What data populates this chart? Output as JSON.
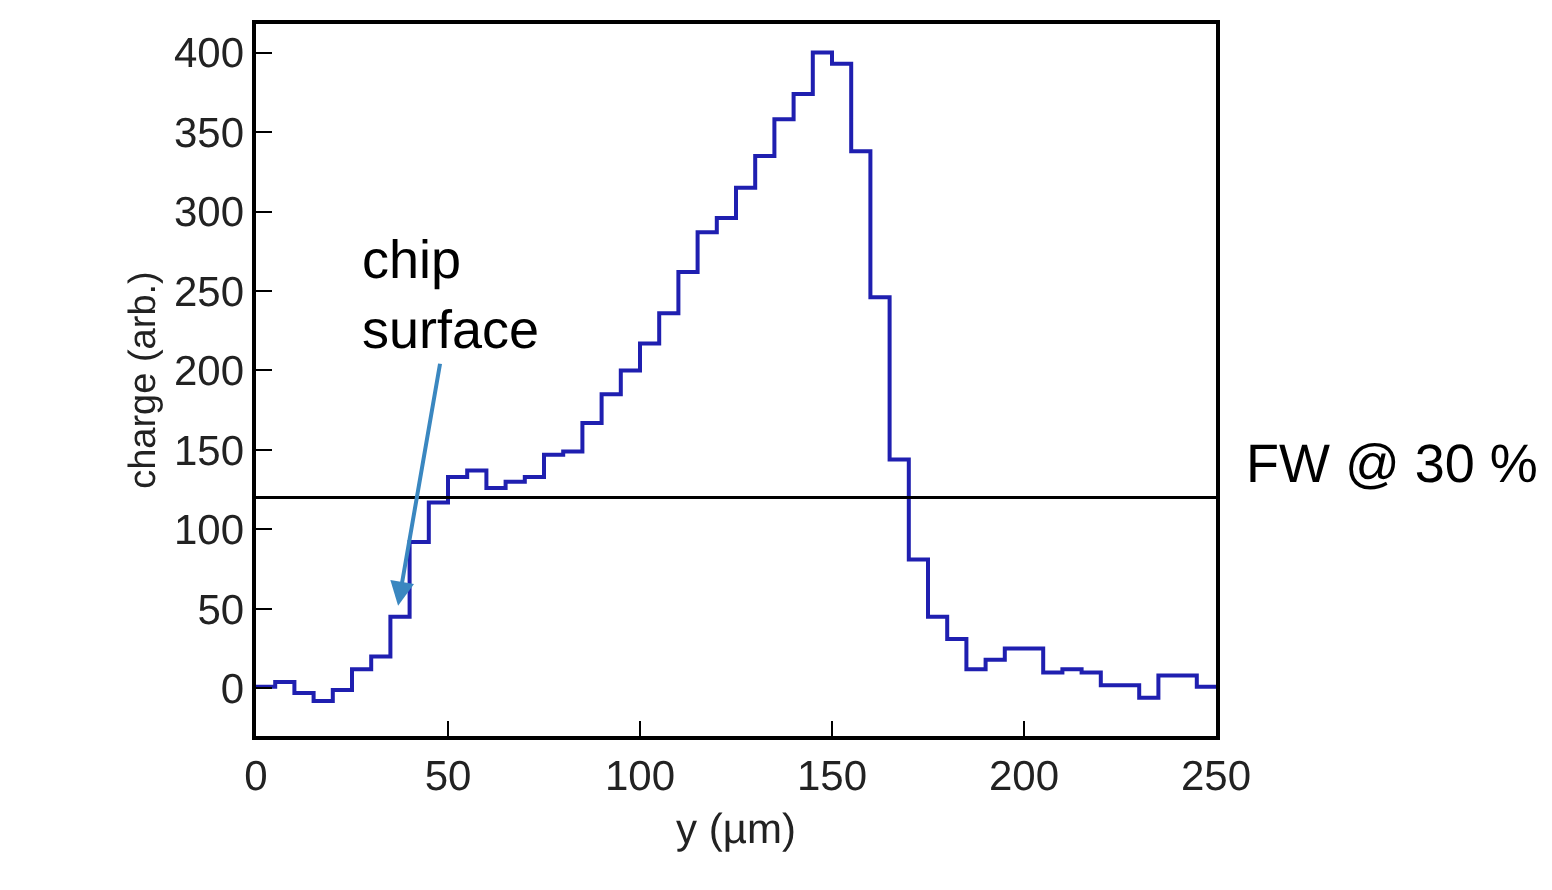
{
  "chart_data": {
    "type": "histogram",
    "xlabel": "y (µm)",
    "ylabel": "charge (arb.)",
    "bins": [
      0,
      5,
      10,
      15,
      20,
      25,
      30,
      35,
      40,
      45,
      50,
      55,
      60,
      65,
      70,
      75,
      80,
      85,
      90,
      95,
      100,
      105,
      110,
      115,
      120,
      125,
      130,
      135,
      140,
      145,
      150,
      155,
      160,
      165,
      170,
      175,
      180,
      185,
      190,
      195,
      200,
      205,
      210,
      215,
      220,
      225,
      230,
      235,
      240,
      245,
      250
    ],
    "values": [
      1,
      4,
      -3,
      -8,
      -1,
      12,
      20,
      45,
      92,
      117,
      133,
      137,
      126,
      130,
      133,
      147,
      149,
      167,
      185,
      200,
      217,
      236,
      262,
      287,
      296,
      315,
      335,
      358,
      374,
      400,
      393,
      338,
      246,
      144,
      81,
      45,
      31,
      12,
      18,
      25,
      25,
      10,
      12,
      10,
      2,
      2,
      -6,
      8,
      8,
      1
    ],
    "color": "#1f1fb0",
    "xlim": [
      0,
      250
    ],
    "xticks": [
      0,
      50,
      100,
      150,
      200,
      250
    ],
    "ylim": [
      -30,
      418
    ],
    "yticks": [
      0,
      50,
      100,
      150,
      200,
      250,
      300,
      350,
      400
    ],
    "ref_lines": [
      {
        "axis": "y",
        "value": 120,
        "label": "FW @ 30 %",
        "color": "#000000"
      }
    ],
    "annotations": [
      {
        "text": "chip\nsurface",
        "x": 37,
        "y": 52
      }
    ]
  }
}
